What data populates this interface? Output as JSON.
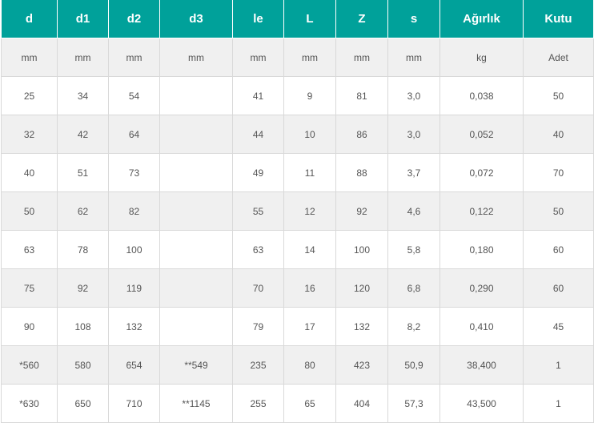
{
  "table": {
    "headers": [
      "d",
      "d1",
      "d2",
      "d3",
      "le",
      "L",
      "Z",
      "s",
      "Ağırlık",
      "Kutu"
    ],
    "units": [
      "mm",
      "mm",
      "mm",
      "mm",
      "mm",
      "mm",
      "mm",
      "mm",
      "kg",
      "Adet"
    ],
    "rows": [
      [
        "25",
        "34",
        "54",
        "",
        "41",
        "9",
        "81",
        "3,0",
        "0,038",
        "50"
      ],
      [
        "32",
        "42",
        "64",
        "",
        "44",
        "10",
        "86",
        "3,0",
        "0,052",
        "40"
      ],
      [
        "40",
        "51",
        "73",
        "",
        "49",
        "11",
        "88",
        "3,7",
        "0,072",
        "70"
      ],
      [
        "50",
        "62",
        "82",
        "",
        "55",
        "12",
        "92",
        "4,6",
        "0,122",
        "50"
      ],
      [
        "63",
        "78",
        "100",
        "",
        "63",
        "14",
        "100",
        "5,8",
        "0,180",
        "60"
      ],
      [
        "75",
        "92",
        "119",
        "",
        "70",
        "16",
        "120",
        "6,8",
        "0,290",
        "60"
      ],
      [
        "90",
        "108",
        "132",
        "",
        "79",
        "17",
        "132",
        "8,2",
        "0,410",
        "45"
      ],
      [
        "*560",
        "580",
        "654",
        "**549",
        "235",
        "80",
        "423",
        "50,9",
        "38,400",
        "1"
      ],
      [
        "*630",
        "650",
        "710",
        "**1145",
        "255",
        "65",
        "404",
        "57,3",
        "43,500",
        "1"
      ]
    ]
  }
}
